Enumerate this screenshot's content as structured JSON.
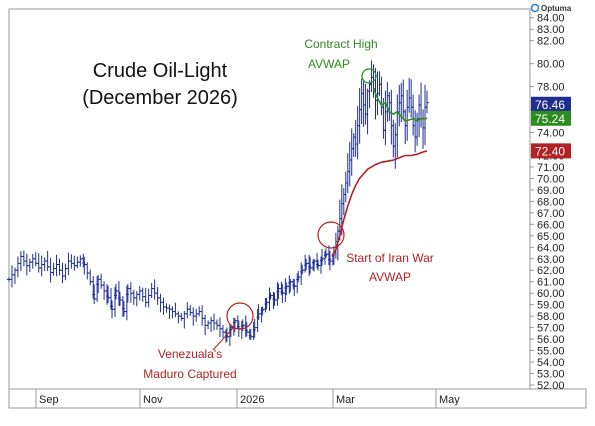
{
  "brand": {
    "logo_text": "Optuma"
  },
  "chart_data": {
    "type": "bar",
    "subtype": "ohlc",
    "title": "Crude Oil-Light",
    "subtitle": "(December 2026)",
    "ylim": [
      52,
      84.5
    ],
    "grid": false,
    "x_labels": [
      "Sep",
      "Nov",
      "2026",
      "Mar",
      "May"
    ],
    "y_ticks": [
      "84.00",
      "83.00",
      "82.00",
      "80.00",
      "78.00",
      "76.00",
      "74.00",
      "72.00",
      "71.00",
      "70.00",
      "69.00",
      "68.00",
      "67.00",
      "66.00",
      "65.00",
      "64.00",
      "63.00",
      "62.00",
      "61.00",
      "60.00",
      "59.00",
      "58.00",
      "57.00",
      "56.00",
      "55.00",
      "54.00",
      "53.00",
      "52.00"
    ],
    "y_tick_values": [
      84,
      83,
      82,
      80,
      78,
      76,
      74,
      72,
      71,
      70,
      69,
      68,
      67,
      66,
      65,
      64,
      63,
      62,
      61,
      60,
      59,
      58,
      57,
      56,
      55,
      54,
      53,
      52
    ],
    "price_path": [
      [
        0,
        61.2
      ],
      [
        6,
        62.0
      ],
      [
        12,
        63.2
      ],
      [
        18,
        62.4
      ],
      [
        24,
        63.0
      ],
      [
        30,
        62.2
      ],
      [
        36,
        62.8
      ],
      [
        42,
        61.8
      ],
      [
        48,
        62.5
      ],
      [
        54,
        61.5
      ],
      [
        60,
        62.8
      ],
      [
        66,
        62.4
      ],
      [
        72,
        63.0
      ],
      [
        76,
        62.5
      ],
      [
        82,
        61.0
      ],
      [
        86,
        59.5
      ],
      [
        90,
        61.2
      ],
      [
        96,
        60.2
      ],
      [
        100,
        59.6
      ],
      [
        104,
        58.6
      ],
      [
        108,
        60.2
      ],
      [
        112,
        59.4
      ],
      [
        116,
        58.4
      ],
      [
        120,
        60.4
      ],
      [
        126,
        59.6
      ],
      [
        132,
        60.2
      ],
      [
        138,
        59.2
      ],
      [
        144,
        60.4
      ],
      [
        150,
        59.6
      ],
      [
        156,
        58.8
      ],
      [
        162,
        58.6
      ],
      [
        168,
        58.2
      ],
      [
        174,
        57.8
      ],
      [
        180,
        58.6
      ],
      [
        186,
        58.0
      ],
      [
        192,
        58.4
      ],
      [
        198,
        57.2
      ],
      [
        204,
        57.6
      ],
      [
        210,
        57.2
      ],
      [
        216,
        56.6
      ],
      [
        220,
        56.2
      ],
      [
        224,
        57.0
      ],
      [
        228,
        57.6
      ],
      [
        232,
        56.9
      ],
      [
        236,
        57.2
      ],
      [
        240,
        56.6
      ],
      [
        244,
        56.2
      ],
      [
        248,
        57.0
      ],
      [
        252,
        58.2
      ],
      [
        256,
        58.6
      ],
      [
        260,
        59.2
      ],
      [
        264,
        59.8
      ],
      [
        268,
        59.4
      ],
      [
        272,
        60.4
      ],
      [
        276,
        60.0
      ],
      [
        280,
        60.6
      ],
      [
        284,
        61.0
      ],
      [
        288,
        60.6
      ],
      [
        292,
        61.4
      ],
      [
        296,
        62.0
      ],
      [
        300,
        62.6
      ],
      [
        304,
        62.2
      ],
      [
        308,
        62.8
      ],
      [
        312,
        62.4
      ],
      [
        316,
        63.0
      ],
      [
        320,
        63.4
      ],
      [
        324,
        62.8
      ],
      [
        328,
        63.5
      ],
      [
        330,
        64.5
      ],
      [
        332,
        65.4
      ],
      [
        334,
        66.5
      ],
      [
        336,
        67.8
      ],
      [
        338,
        68.6
      ],
      [
        340,
        69.6
      ],
      [
        342,
        70.6
      ],
      [
        344,
        71.6
      ],
      [
        346,
        72.6
      ],
      [
        348,
        73.6
      ],
      [
        350,
        73.0
      ],
      [
        352,
        74.6
      ],
      [
        354,
        76.0
      ],
      [
        356,
        77.4
      ],
      [
        358,
        76.4
      ],
      [
        360,
        75.6
      ],
      [
        362,
        77.6
      ],
      [
        364,
        78.2
      ],
      [
        366,
        78.8
      ],
      [
        368,
        77.8
      ],
      [
        370,
        76.8
      ],
      [
        372,
        77.4
      ],
      [
        374,
        78.2
      ],
      [
        376,
        76.2
      ],
      [
        378,
        74.2
      ],
      [
        380,
        75.8
      ],
      [
        382,
        77.2
      ],
      [
        384,
        76.6
      ],
      [
        386,
        74.6
      ],
      [
        388,
        72.8
      ],
      [
        390,
        73.8
      ],
      [
        392,
        75.8
      ],
      [
        394,
        76.6
      ],
      [
        396,
        77.2
      ],
      [
        398,
        75.8
      ],
      [
        400,
        74.6
      ],
      [
        402,
        76.2
      ],
      [
        404,
        77.0
      ],
      [
        406,
        76.2
      ],
      [
        408,
        74.6
      ],
      [
        410,
        73.6
      ],
      [
        412,
        75.2
      ],
      [
        414,
        76.4
      ],
      [
        416,
        75.2
      ],
      [
        418,
        74.4
      ],
      [
        420,
        76.2
      ],
      [
        422,
        76.6
      ]
    ],
    "series": [
      {
        "name": "Contract High AVWAP",
        "color": "#2e8b1f",
        "current": 75.24,
        "label": "75.24",
        "points": [
          [
            368,
            77.8
          ],
          [
            372,
            77.0
          ],
          [
            376,
            76.4
          ],
          [
            380,
            76.6
          ],
          [
            384,
            75.8
          ],
          [
            388,
            75.6
          ],
          [
            392,
            75.8
          ],
          [
            396,
            75.4
          ],
          [
            400,
            75.0
          ],
          [
            404,
            75.1
          ],
          [
            408,
            75.2
          ],
          [
            412,
            75.0
          ],
          [
            416,
            75.2
          ],
          [
            420,
            75.2
          ],
          [
            422,
            75.24
          ]
        ]
      },
      {
        "name": "Start of Iran War AVWAP",
        "color": "#b22222",
        "current": 72.4,
        "label": "72.40",
        "points": [
          [
            326,
            63.2
          ],
          [
            330,
            63.8
          ],
          [
            334,
            65.0
          ],
          [
            338,
            66.4
          ],
          [
            342,
            67.6
          ],
          [
            346,
            68.6
          ],
          [
            350,
            69.4
          ],
          [
            354,
            70.0
          ],
          [
            358,
            70.4
          ],
          [
            362,
            70.8
          ],
          [
            366,
            71.0
          ],
          [
            370,
            71.2
          ],
          [
            376,
            71.4
          ],
          [
            382,
            71.5
          ],
          [
            388,
            71.6
          ],
          [
            394,
            71.8
          ],
          [
            400,
            72.0
          ],
          [
            406,
            72.0
          ],
          [
            412,
            72.1
          ],
          [
            418,
            72.3
          ],
          [
            422,
            72.4
          ]
        ]
      }
    ],
    "last_price": {
      "value": 76.46,
      "label": "76.46",
      "color": "#1f2d8f"
    },
    "bar_color": "#1f2d8f",
    "annotations": [
      {
        "label": "Contract High",
        "line2": "AVWAP",
        "color": "#2e8b1f"
      },
      {
        "label": "Start of Iran War",
        "line2": "AVWAP",
        "color": "#b22222"
      },
      {
        "label": "Venezuala's",
        "line2": "Maduro Captured",
        "color": "#b22222"
      }
    ]
  }
}
